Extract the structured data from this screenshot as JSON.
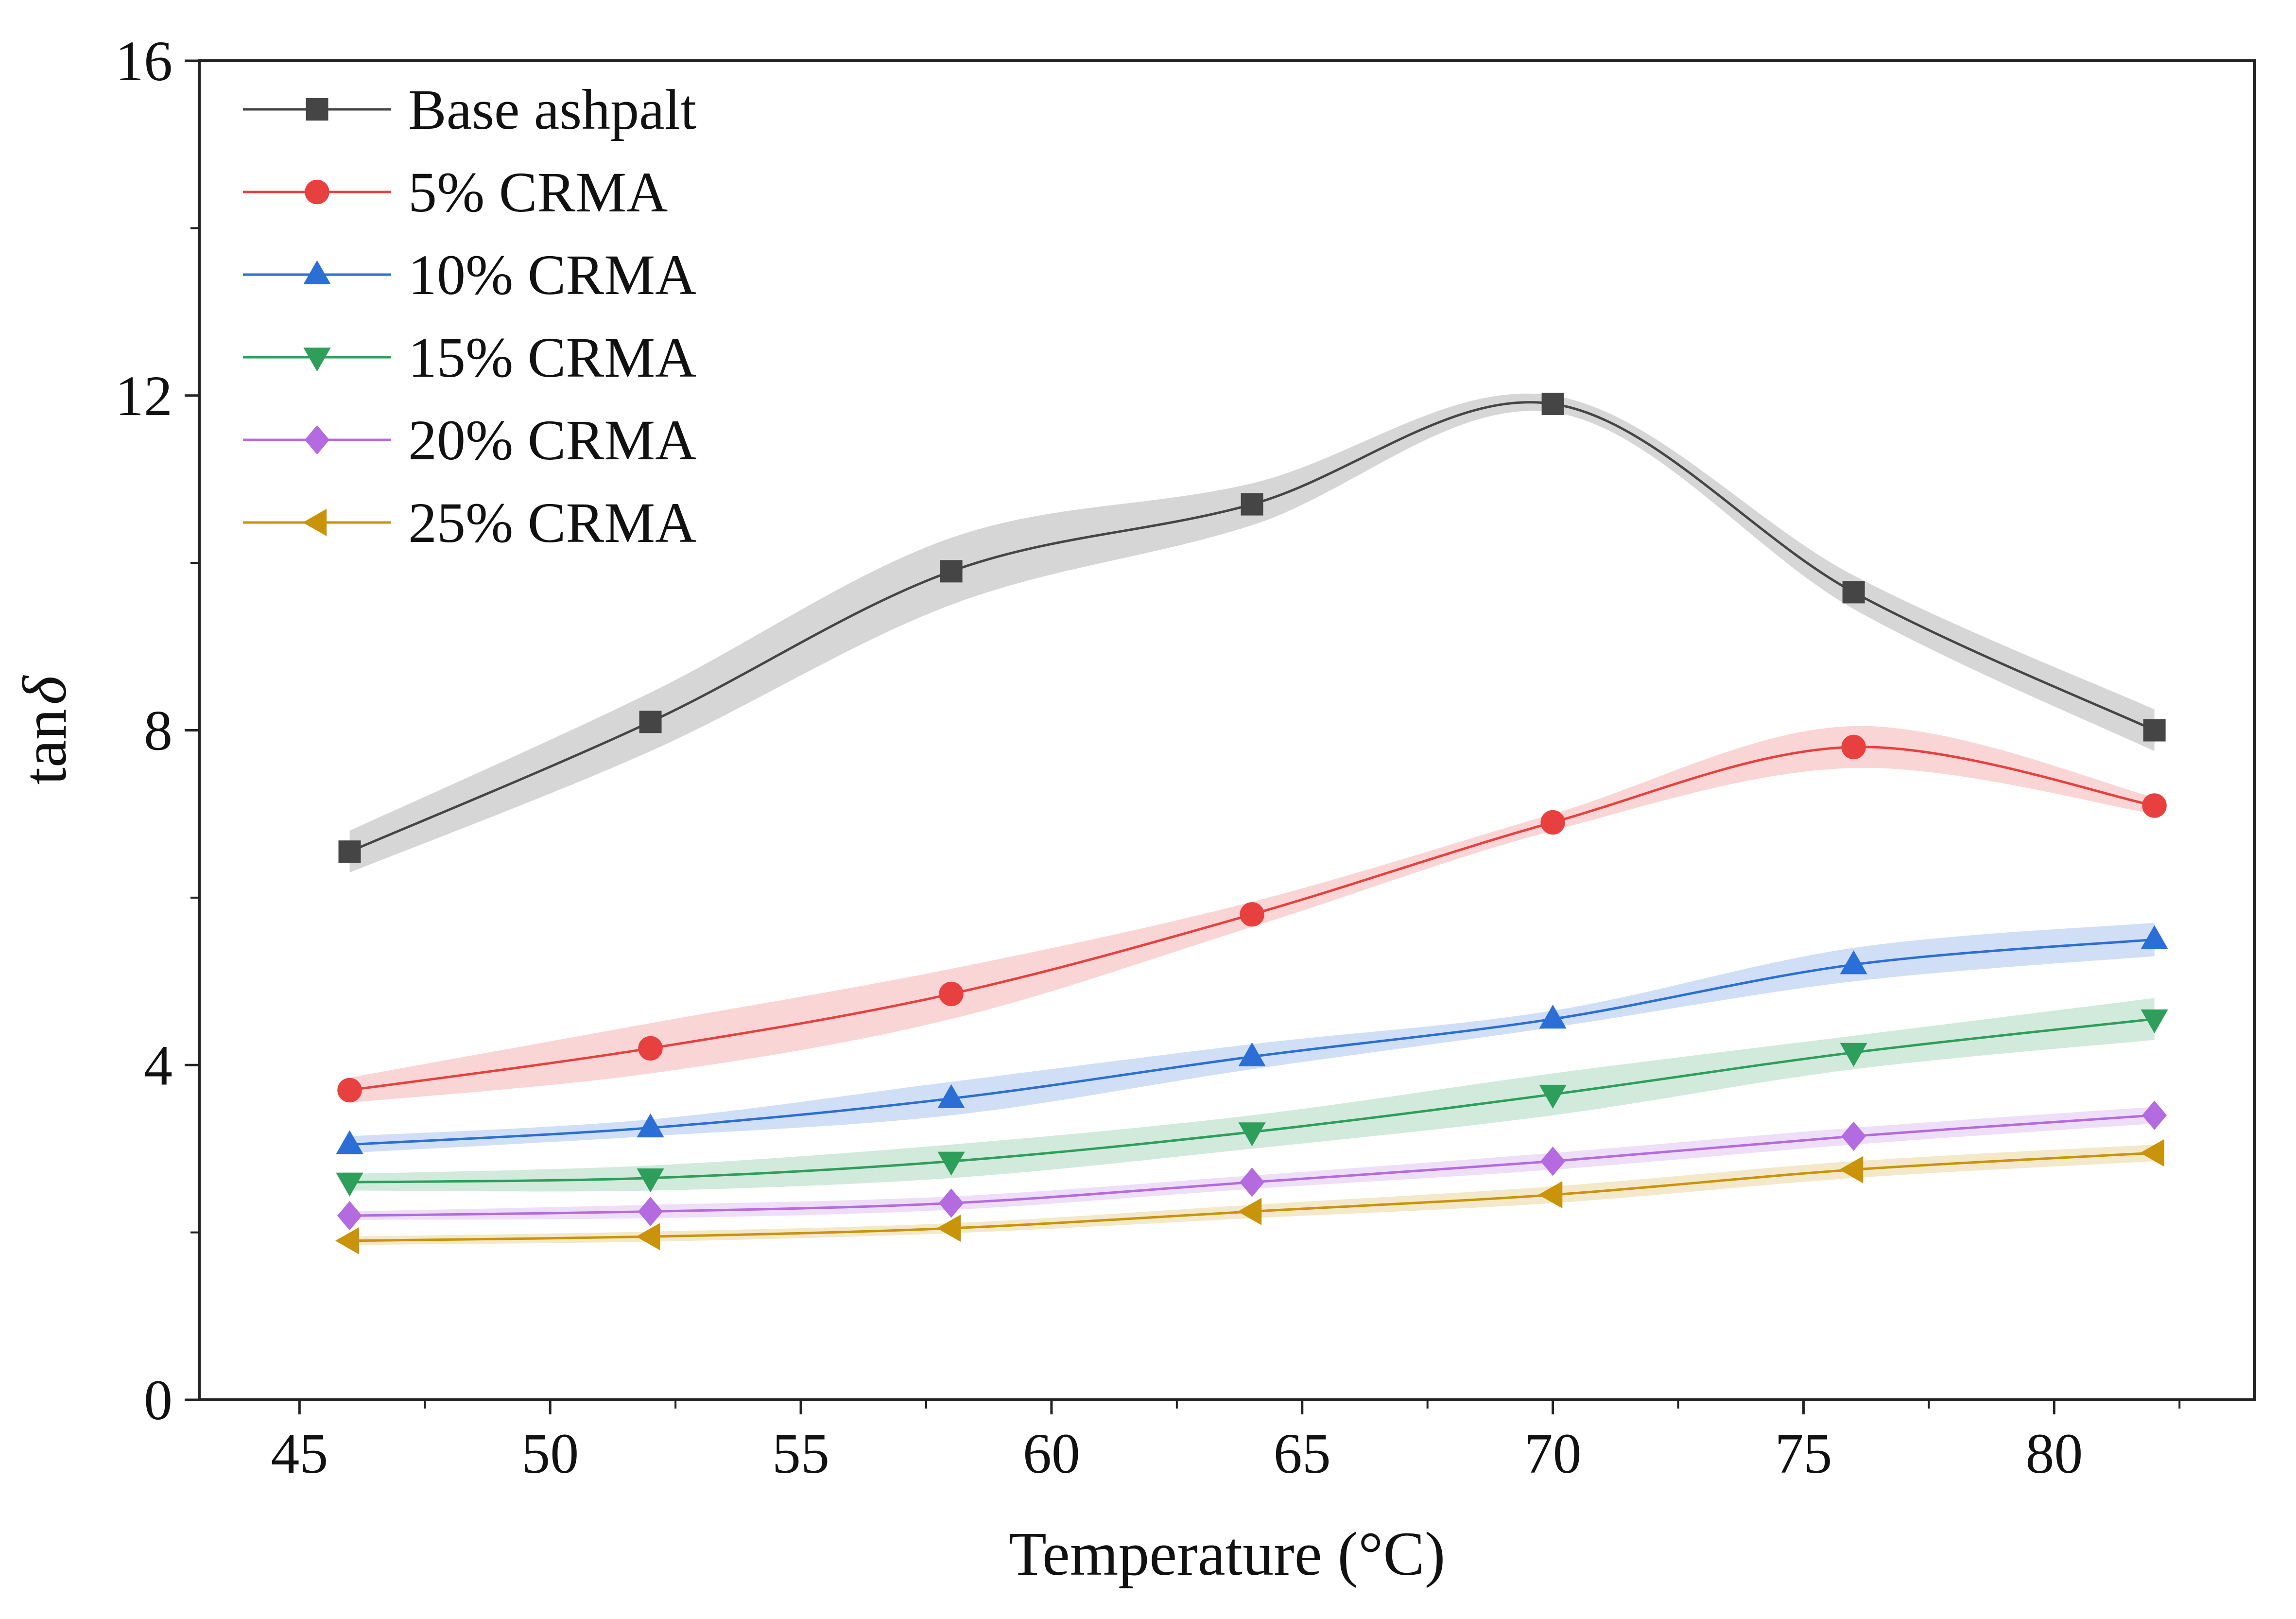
{
  "chart_data": {
    "type": "line",
    "title": "",
    "xlabel": "Temperature (°C)",
    "ylabel_prefix": "tan",
    "ylabel_symbol": "δ",
    "xlim": [
      43,
      84
    ],
    "ylim": [
      0,
      16
    ],
    "xticks": [
      45,
      50,
      55,
      60,
      65,
      70,
      75,
      80
    ],
    "yticks": [
      0,
      4,
      8,
      12,
      16
    ],
    "xtick_labels": [
      "45",
      "50",
      "55",
      "60",
      "65",
      "70",
      "75",
      "80"
    ],
    "ytick_labels": [
      "0",
      "4",
      "8",
      "12",
      "16"
    ],
    "grid": false,
    "legend_position": "top-left",
    "x": [
      46,
      52,
      58,
      64,
      70,
      76,
      82
    ],
    "series": [
      {
        "name": "Base ashpalt",
        "color": "#454545",
        "marker": "square",
        "values": [
          6.55,
          8.1,
          9.9,
          10.7,
          11.9,
          9.65,
          8.0
        ],
        "band": [
          0.25,
          0.35,
          0.4,
          0.25,
          0.1,
          0.2,
          0.25
        ]
      },
      {
        "name": "5% CRMA",
        "color": "#e8403f",
        "marker": "circle",
        "values": [
          3.7,
          4.2,
          4.85,
          5.8,
          6.9,
          7.8,
          7.1
        ],
        "band": [
          0.15,
          0.3,
          0.3,
          0.15,
          0.1,
          0.25,
          0.1
        ]
      },
      {
        "name": "10% CRMA",
        "color": "#2b6fd6",
        "marker": "triangle-up",
        "values": [
          3.05,
          3.25,
          3.6,
          4.1,
          4.55,
          5.2,
          5.5
        ],
        "band": [
          0.1,
          0.1,
          0.2,
          0.15,
          0.1,
          0.2,
          0.2
        ]
      },
      {
        "name": "15% CRMA",
        "color": "#2e9e5b",
        "marker": "triangle-down",
        "values": [
          2.6,
          2.65,
          2.85,
          3.2,
          3.65,
          4.15,
          4.55
        ],
        "band": [
          0.1,
          0.15,
          0.2,
          0.2,
          0.25,
          0.2,
          0.25
        ]
      },
      {
        "name": "20% CRMA",
        "color": "#b46be0",
        "marker": "diamond",
        "values": [
          2.2,
          2.25,
          2.35,
          2.6,
          2.85,
          3.15,
          3.4
        ],
        "band": [
          0.05,
          0.08,
          0.08,
          0.08,
          0.1,
          0.1,
          0.1
        ]
      },
      {
        "name": "25% CRMA",
        "color": "#c9940a",
        "marker": "triangle-left",
        "values": [
          1.9,
          1.95,
          2.05,
          2.25,
          2.45,
          2.75,
          2.95
        ],
        "band": [
          0.05,
          0.06,
          0.06,
          0.08,
          0.1,
          0.1,
          0.1
        ]
      }
    ]
  }
}
